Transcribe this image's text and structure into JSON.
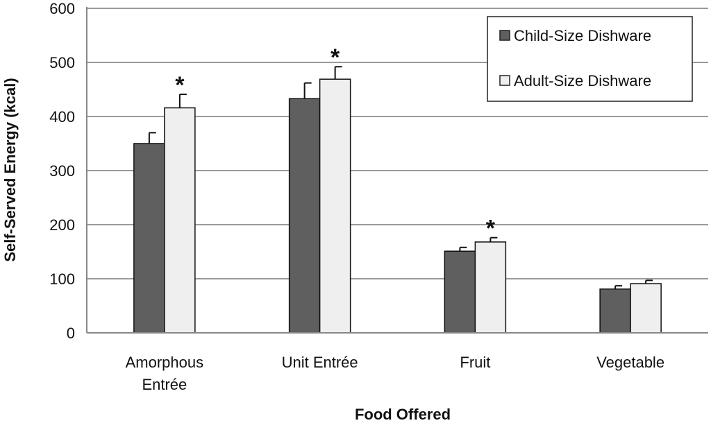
{
  "chart_data": {
    "type": "bar",
    "xlabel": "Food Offered",
    "ylabel": "Self-Served Energy (kcal)",
    "ylim": [
      0,
      600
    ],
    "yticks": [
      "0",
      "100",
      "200",
      "300",
      "400",
      "500",
      "600"
    ],
    "grid": true,
    "legend_position": "top-right",
    "categories": [
      {
        "lines": [
          "Amorphous",
          "Entrée"
        ],
        "significant": true
      },
      {
        "lines": [
          "Unit Entrée"
        ],
        "significant": true
      },
      {
        "lines": [
          "Fruit"
        ],
        "significant": true
      },
      {
        "lines": [
          "Vegetable"
        ],
        "significant": false
      }
    ],
    "series": [
      {
        "name": "Child-Size Dishware",
        "color": "#5f5f5f",
        "values": [
          350,
          433,
          151,
          81
        ],
        "errors": [
          20,
          29,
          7,
          6
        ]
      },
      {
        "name": "Adult-Size Dishware",
        "color": "#efefef",
        "values": [
          416,
          469,
          168,
          91
        ],
        "errors": [
          25,
          23,
          8,
          6
        ]
      }
    ],
    "significance_marker": "*"
  }
}
